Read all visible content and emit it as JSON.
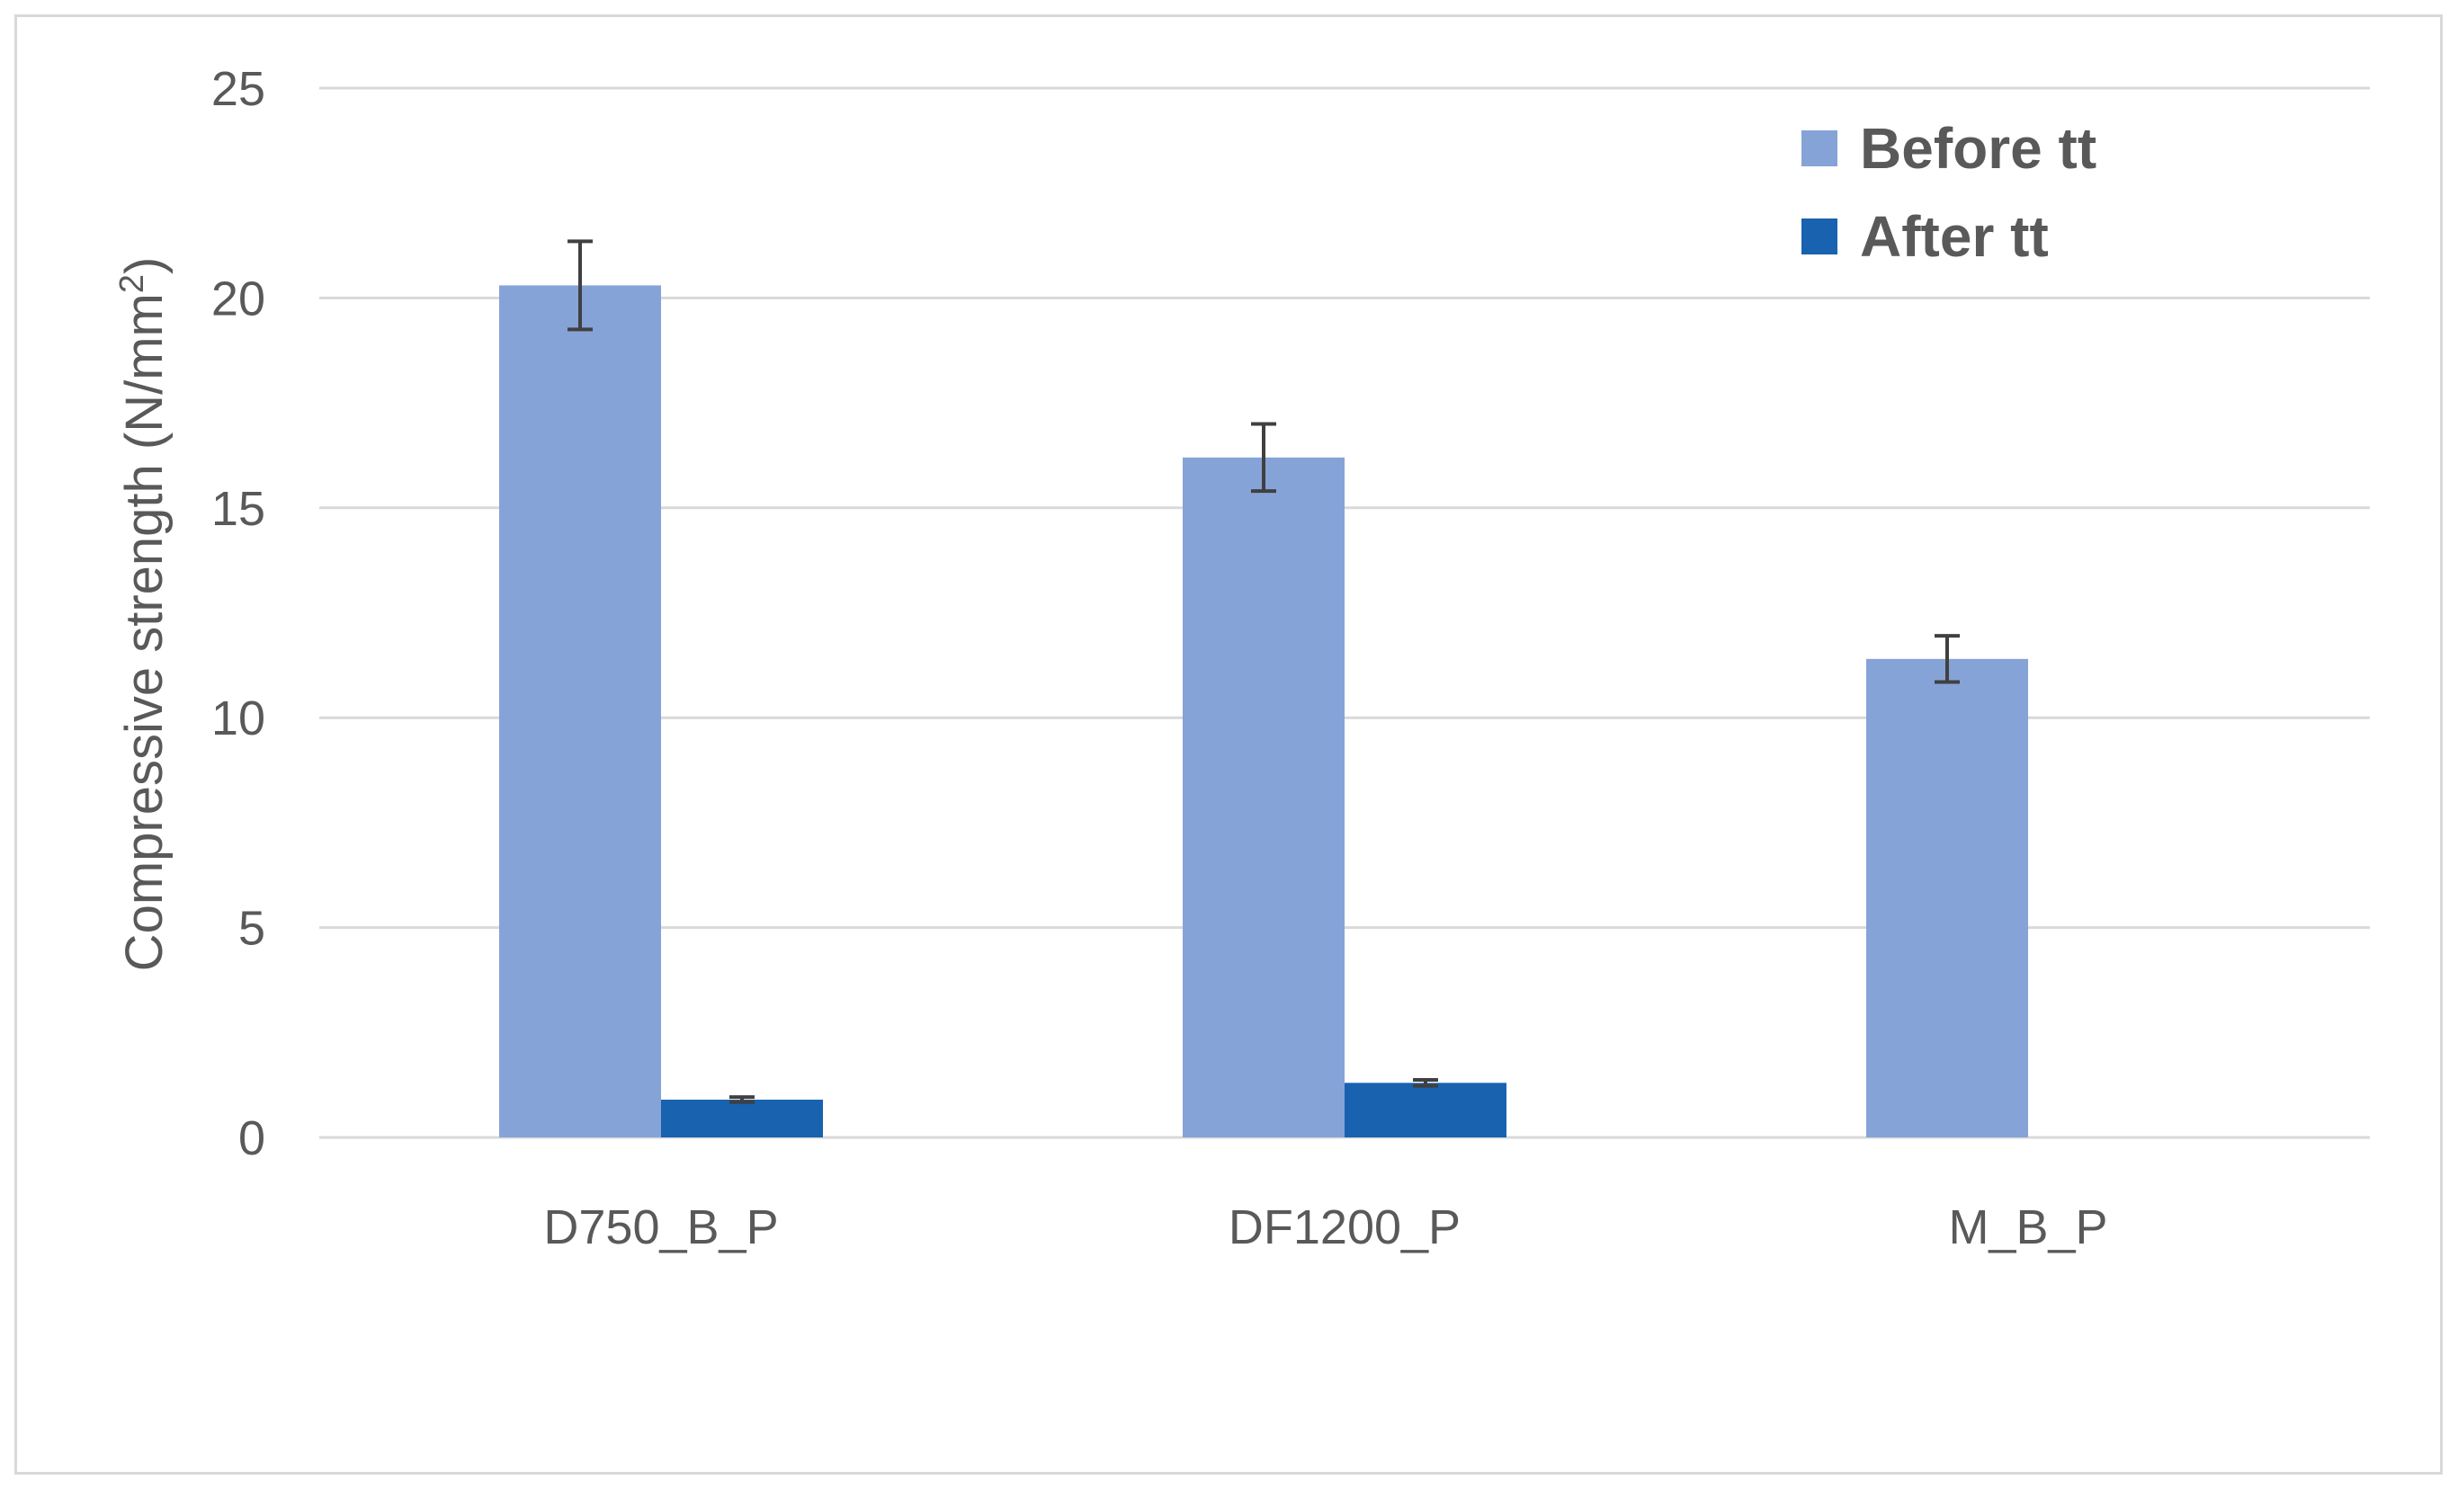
{
  "chart_data": {
    "type": "bar",
    "title": "",
    "xlabel": "",
    "ylabel": "Compressive strength (N/mm²)",
    "ylabel_parts": {
      "main": "Compressive strength (N/mm",
      "sup": "2",
      "close": ")"
    },
    "ylim": [
      0,
      25
    ],
    "yticks": [
      0,
      5,
      10,
      15,
      20,
      25
    ],
    "grid": true,
    "legend_position": "top-right",
    "categories": [
      "D750_B_P",
      "DF1200_P",
      "M_B_P"
    ],
    "series": [
      {
        "name": "Before tt",
        "color": "#86a3d8",
        "values": [
          20.3,
          16.2,
          11.4
        ],
        "errors": [
          1.05,
          0.8,
          0.55
        ]
      },
      {
        "name": "After tt",
        "color": "#1862b0",
        "values": [
          0.9,
          1.3,
          null
        ],
        "errors": [
          0.06,
          0.07,
          null
        ]
      }
    ],
    "colors": {
      "gridline": "#d9d9d9",
      "text": "#595959",
      "error_bar": "#404040"
    }
  }
}
